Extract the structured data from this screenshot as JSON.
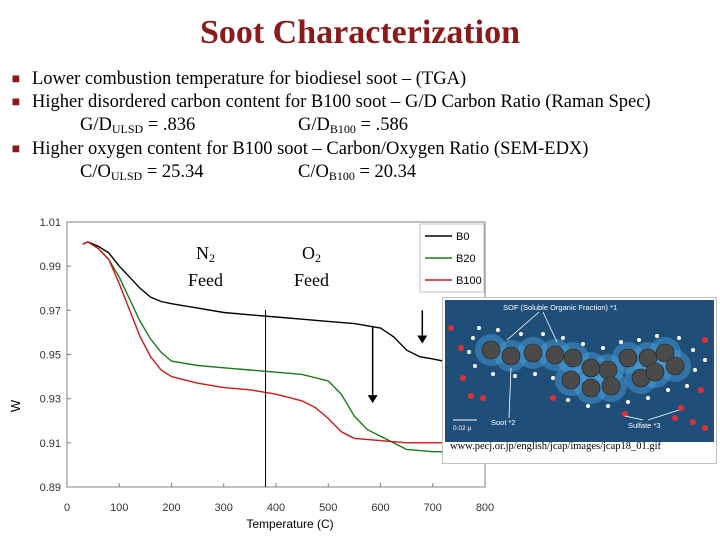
{
  "slide": {
    "title": "Soot Characterization",
    "bullets": [
      {
        "text": "Lower combustion temperature for biodiesel soot – (TGA)"
      },
      {
        "text": "Higher disordered carbon content for B100 soot – G/D Carbon Ratio (Raman Spec)"
      },
      {
        "text": "Higher oxygen content for B100 soot – Carbon/Oxygen Ratio (SEM-EDX)"
      }
    ],
    "gd": {
      "ulsd_prefix": "G/D",
      "ulsd_sub": "ULSD",
      "ulsd_value": " = .836",
      "b100_prefix": "G/D",
      "b100_sub": "B100",
      "b100_value": " = .586"
    },
    "co": {
      "ulsd_prefix": "C/O",
      "ulsd_sub": "ULSD",
      "ulsd_value": " = 25.34",
      "b100_prefix": "C/O",
      "b100_sub": "B100",
      "b100_value": " = 20.34"
    },
    "feed": {
      "n2_main": "N",
      "n2_sub": "2",
      "n2_word": "Feed",
      "o2_main": "O",
      "o2_sub": "2",
      "o2_word": "Feed"
    },
    "inset": {
      "url": "www.pecj.or.jp/english/jcap/images/jcap18_01.gif",
      "labels": {
        "sof": "SOF (Soluble Organic Fraction) *1",
        "soot": "Soot *2",
        "sulfate": "Sulfate *3",
        "scale": "0.02 μ"
      },
      "colors": {
        "background": "#1f4e79",
        "glow": "#4aa3e0",
        "particle": "#4a4a4a",
        "sulfate": "#e03030",
        "sof_dot": "#ffffff"
      }
    }
  },
  "chart_data": {
    "type": "line",
    "xlabel": "Temperature (C)",
    "ylabel": "W",
    "xlim": [
      0,
      800
    ],
    "ylim": [
      0.89,
      1.01
    ],
    "xticks": [
      0,
      100,
      200,
      300,
      400,
      500,
      600,
      700,
      800
    ],
    "yticks": [
      "0.89",
      "0.91",
      "0.93",
      "0.95",
      "0.97",
      "0.99",
      "1.01"
    ],
    "legend_position": "top-right",
    "series": [
      {
        "name": "B0",
        "color": "#000000",
        "points": [
          [
            30,
            1.0
          ],
          [
            40,
            1.001
          ],
          [
            60,
            0.999
          ],
          [
            80,
            0.996
          ],
          [
            100,
            0.99
          ],
          [
            120,
            0.985
          ],
          [
            140,
            0.98
          ],
          [
            160,
            0.976
          ],
          [
            180,
            0.974
          ],
          [
            200,
            0.973
          ],
          [
            250,
            0.971
          ],
          [
            300,
            0.969
          ],
          [
            350,
            0.968
          ],
          [
            400,
            0.967
          ],
          [
            450,
            0.966
          ],
          [
            500,
            0.965
          ],
          [
            550,
            0.964
          ],
          [
            600,
            0.962
          ],
          [
            625,
            0.958
          ],
          [
            650,
            0.952
          ],
          [
            675,
            0.949
          ],
          [
            700,
            0.948
          ],
          [
            720,
            0.947
          ]
        ]
      },
      {
        "name": "B20",
        "color": "#1a7a1a",
        "points": [
          [
            30,
            1.0
          ],
          [
            40,
            1.001
          ],
          [
            60,
            0.998
          ],
          [
            80,
            0.993
          ],
          [
            100,
            0.985
          ],
          [
            120,
            0.975
          ],
          [
            140,
            0.965
          ],
          [
            160,
            0.957
          ],
          [
            180,
            0.951
          ],
          [
            200,
            0.947
          ],
          [
            250,
            0.945
          ],
          [
            300,
            0.944
          ],
          [
            350,
            0.943
          ],
          [
            400,
            0.942
          ],
          [
            450,
            0.941
          ],
          [
            500,
            0.938
          ],
          [
            525,
            0.932
          ],
          [
            550,
            0.922
          ],
          [
            575,
            0.916
          ],
          [
            600,
            0.913
          ],
          [
            650,
            0.907
          ],
          [
            700,
            0.906
          ],
          [
            720,
            0.906
          ]
        ]
      },
      {
        "name": "B100",
        "color": "#cc1a1a",
        "points": [
          [
            30,
            1.0
          ],
          [
            40,
            1.001
          ],
          [
            60,
            0.998
          ],
          [
            80,
            0.993
          ],
          [
            100,
            0.982
          ],
          [
            120,
            0.97
          ],
          [
            140,
            0.958
          ],
          [
            160,
            0.949
          ],
          [
            180,
            0.943
          ],
          [
            200,
            0.94
          ],
          [
            250,
            0.937
          ],
          [
            300,
            0.935
          ],
          [
            350,
            0.934
          ],
          [
            400,
            0.932
          ],
          [
            450,
            0.929
          ],
          [
            475,
            0.926
          ],
          [
            500,
            0.921
          ],
          [
            525,
            0.915
          ],
          [
            550,
            0.912
          ],
          [
            600,
            0.911
          ],
          [
            650,
            0.91
          ],
          [
            700,
            0.91
          ],
          [
            720,
            0.91
          ]
        ]
      }
    ],
    "annotations": {
      "gas_switch_x": 380,
      "arrows": [
        {
          "x": 585,
          "y_from": 0.963,
          "y_to": 0.928
        },
        {
          "x": 680,
          "y_from": 0.97,
          "y_to": 0.955
        }
      ]
    }
  }
}
